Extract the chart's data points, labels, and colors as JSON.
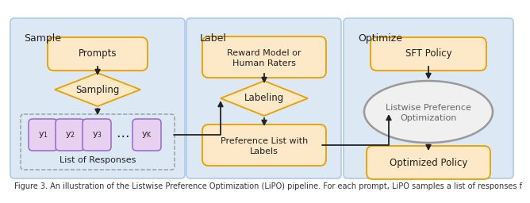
{
  "bg_color": "#dce9f5",
  "panel_edge": "#b0c8e8",
  "box_fill": "#fde8c8",
  "box_edge": "#e8a000",
  "diamond_fill": "#fde8c8",
  "diamond_edge": "#e8a000",
  "circle_fill": "#f0f0f0",
  "circle_edge": "#999999",
  "yi_fill": "#e8d0f0",
  "yi_edge": "#9966cc",
  "arrow_color": "#222222",
  "text_color": "#222222",
  "caption_text": "Figure 3. An illustration of the Listwise Preference Optimization (LiPO) pipeline. For each prompt, LiPO samples a list of responses f",
  "caption_fontsize": 7.0,
  "section_labels": [
    "Sample",
    "Label",
    "Optimize"
  ],
  "yi_labels": [
    "$y_1$",
    "$y_2$",
    "$y_3$",
    "$y_K$"
  ]
}
